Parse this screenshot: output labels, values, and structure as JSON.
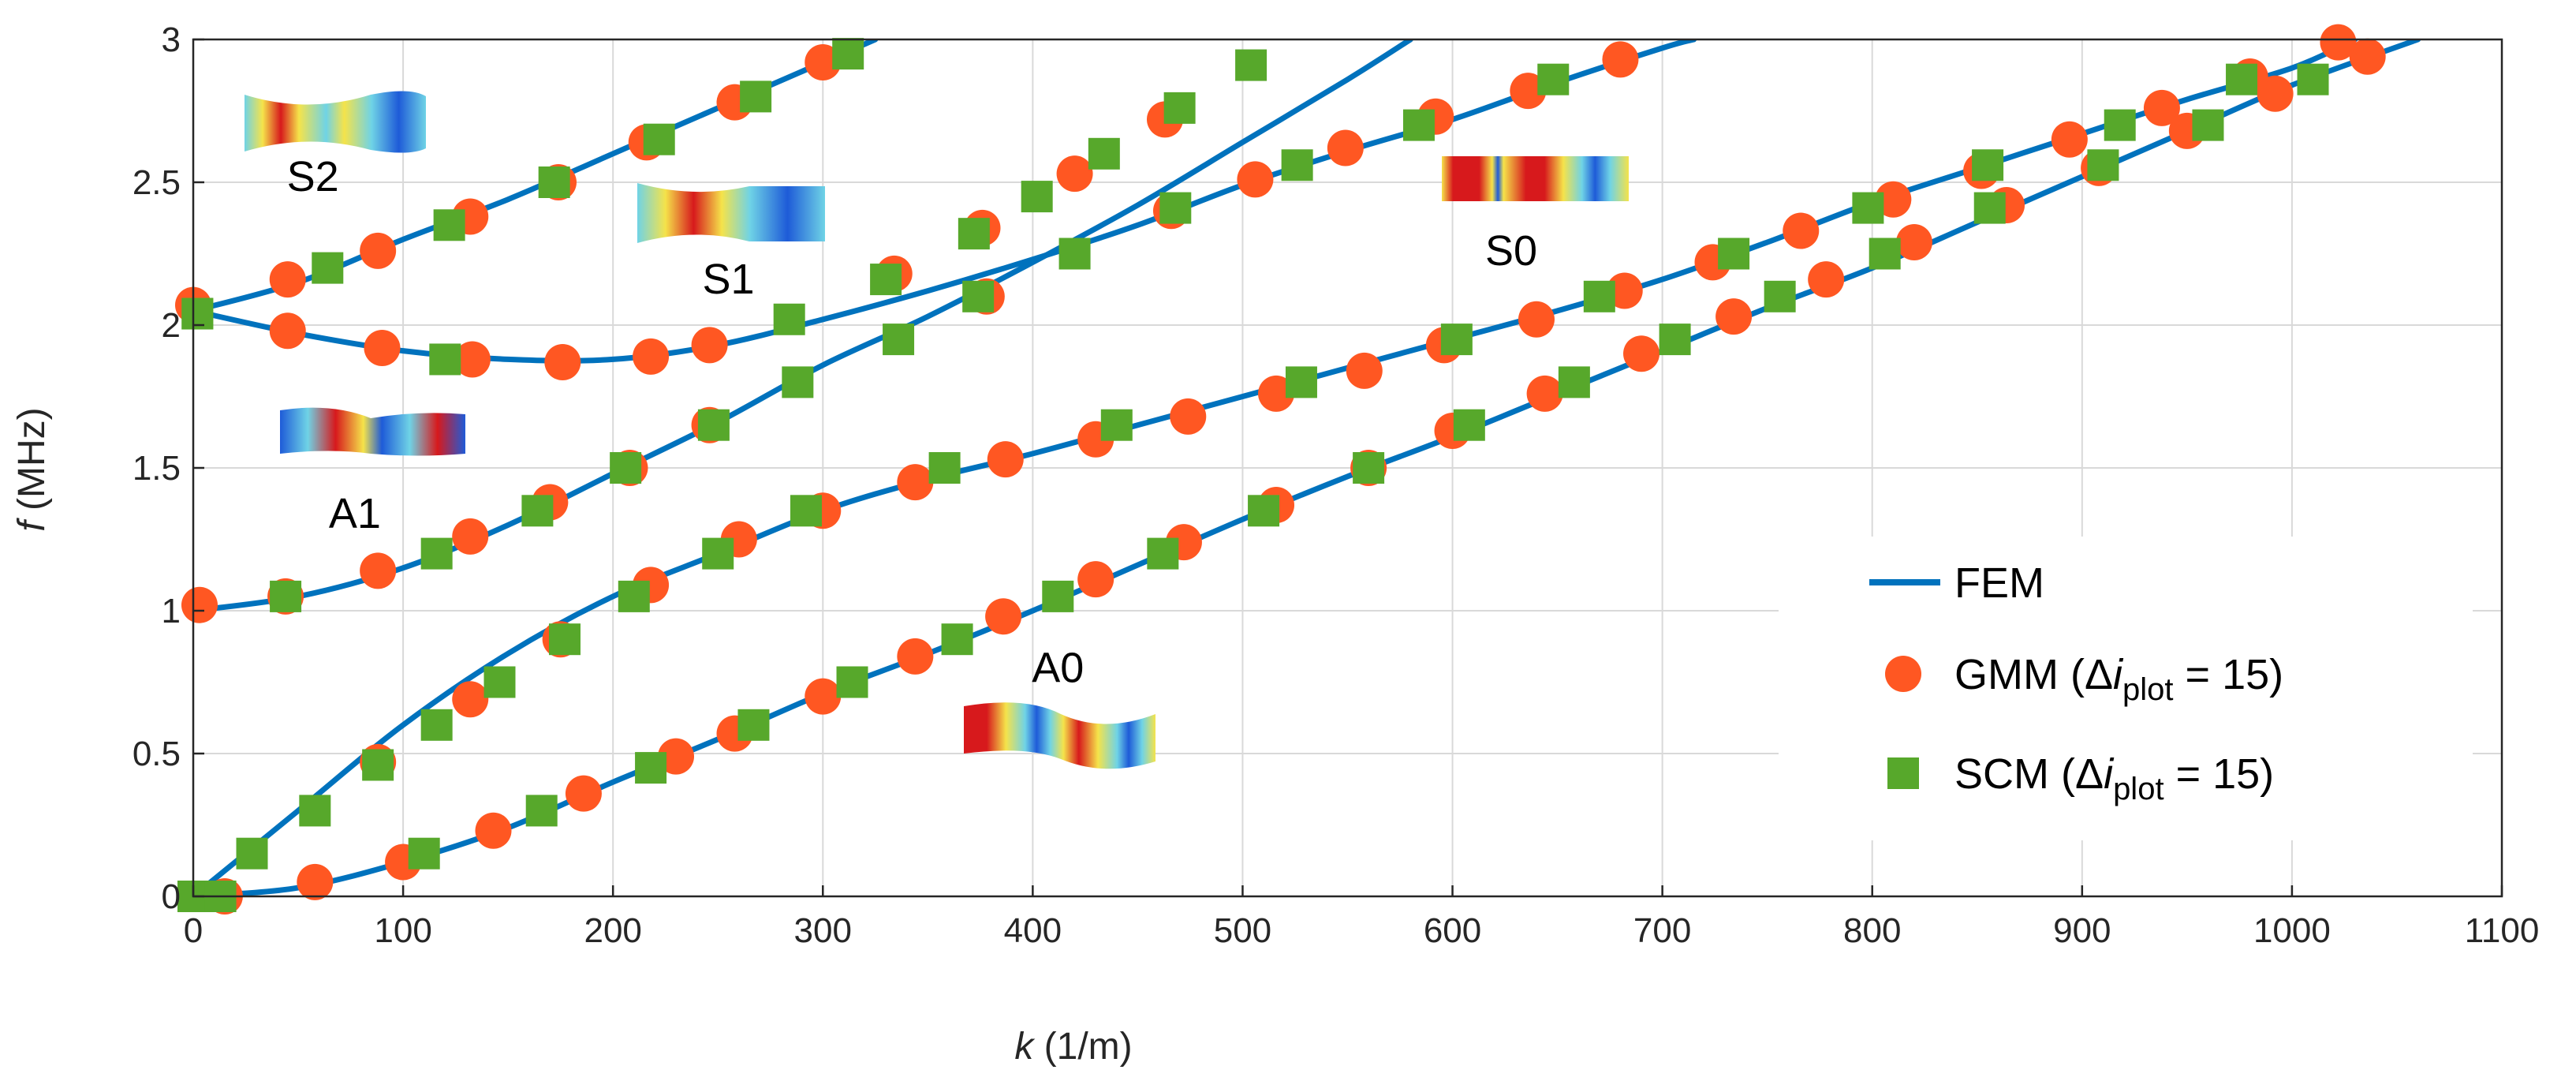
{
  "colors": {
    "fem": "#0072BD",
    "gmm": "#FF5722",
    "scm": "#57A82B",
    "grid": "#d9d9d9",
    "axis": "#262626",
    "mode_red": "#d7191c",
    "mode_blue": "#1e5bd8",
    "mode_cyan": "#6fd3e6",
    "mode_yellow": "#f5e34a"
  },
  "chart_data": {
    "type": "line",
    "title": "",
    "xlabel": {
      "var": "k",
      "unit": " (1/m)"
    },
    "ylabel": {
      "var": "f",
      "unit": " (MHz)"
    },
    "xlim": [
      0,
      1100
    ],
    "ylim": [
      0,
      3
    ],
    "grid": true,
    "xticks": [
      0,
      100,
      200,
      300,
      400,
      500,
      600,
      700,
      800,
      900,
      1000,
      1100
    ],
    "yticks": [
      0,
      0.5,
      1,
      1.5,
      2,
      2.5,
      3
    ],
    "legend": {
      "placement": "bottom-right",
      "entries": [
        {
          "name": "FEM",
          "marker": "line"
        },
        {
          "name": "GMM",
          "marker": "circle",
          "prefix": "GMM (Δ",
          "var": "i",
          "sub": "plot",
          "suffix": " = 15)"
        },
        {
          "name": "SCM",
          "marker": "square",
          "prefix": "SCM (Δ",
          "var": "i",
          "sub": "plot",
          "suffix": " = 15)"
        }
      ]
    },
    "series": [
      {
        "name": "A0",
        "fem": [
          [
            0,
            0
          ],
          [
            50,
            0.03
          ],
          [
            100,
            0.12
          ],
          [
            150,
            0.24
          ],
          [
            200,
            0.4
          ],
          [
            250,
            0.55
          ],
          [
            300,
            0.71
          ],
          [
            350,
            0.85
          ],
          [
            400,
            1.0
          ],
          [
            450,
            1.16
          ],
          [
            500,
            1.32
          ],
          [
            550,
            1.47
          ],
          [
            600,
            1.61
          ],
          [
            650,
            1.76
          ],
          [
            700,
            1.91
          ],
          [
            750,
            2.06
          ],
          [
            800,
            2.2
          ],
          [
            850,
            2.36
          ],
          [
            900,
            2.52
          ],
          [
            950,
            2.68
          ],
          [
            1000,
            2.84
          ],
          [
            1060,
            3.0
          ]
        ],
        "gmm": [
          [
            15,
            0
          ],
          [
            58,
            0.05
          ],
          [
            100,
            0.12
          ],
          [
            143,
            0.23
          ],
          [
            186,
            0.36
          ],
          [
            230,
            0.49
          ],
          [
            258,
            0.57
          ],
          [
            300,
            0.7
          ],
          [
            344,
            0.84
          ],
          [
            386,
            0.98
          ],
          [
            430,
            1.11
          ],
          [
            472,
            1.24
          ],
          [
            516,
            1.37
          ],
          [
            560,
            1.5
          ],
          [
            600,
            1.63
          ],
          [
            644,
            1.76
          ],
          [
            690,
            1.9
          ],
          [
            734,
            2.03
          ],
          [
            778,
            2.16
          ],
          [
            820,
            2.29
          ],
          [
            864,
            2.42
          ],
          [
            908,
            2.55
          ],
          [
            950,
            2.68
          ],
          [
            992,
            2.81
          ],
          [
            1036,
            2.94
          ]
        ],
        "scm": [
          [
            0,
            0
          ],
          [
            13,
            0
          ],
          [
            110,
            0.15
          ],
          [
            166,
            0.3
          ],
          [
            218,
            0.45
          ],
          [
            267,
            0.6
          ],
          [
            314,
            0.75
          ],
          [
            364,
            0.9
          ],
          [
            412,
            1.05
          ],
          [
            462,
            1.2
          ],
          [
            510,
            1.35
          ],
          [
            560,
            1.5
          ],
          [
            608,
            1.65
          ],
          [
            658,
            1.8
          ],
          [
            706,
            1.95
          ],
          [
            756,
            2.1
          ],
          [
            806,
            2.25
          ],
          [
            856,
            2.41
          ],
          [
            910,
            2.56
          ],
          [
            960,
            2.7
          ],
          [
            1010,
            2.86
          ]
        ]
      },
      {
        "name": "S0",
        "fem": [
          [
            0,
            0
          ],
          [
            50,
            0.3
          ],
          [
            100,
            0.6
          ],
          [
            150,
            0.85
          ],
          [
            200,
            1.05
          ],
          [
            250,
            1.2
          ],
          [
            300,
            1.35
          ],
          [
            350,
            1.46
          ],
          [
            400,
            1.55
          ],
          [
            450,
            1.65
          ],
          [
            500,
            1.75
          ],
          [
            550,
            1.85
          ],
          [
            600,
            1.95
          ],
          [
            650,
            2.05
          ],
          [
            700,
            2.16
          ],
          [
            750,
            2.29
          ],
          [
            800,
            2.43
          ],
          [
            850,
            2.55
          ],
          [
            900,
            2.67
          ],
          [
            950,
            2.79
          ],
          [
            1000,
            2.9
          ],
          [
            1030,
            3.0
          ]
        ],
        "gmm": [
          [
            88,
            0.47
          ],
          [
            132,
            0.69
          ],
          [
            175,
            0.9
          ],
          [
            218,
            1.09
          ],
          [
            260,
            1.25
          ],
          [
            300,
            1.35
          ],
          [
            344,
            1.45
          ],
          [
            387,
            1.53
          ],
          [
            430,
            1.6
          ],
          [
            474,
            1.68
          ],
          [
            516,
            1.76
          ],
          [
            558,
            1.84
          ],
          [
            596,
            1.93
          ],
          [
            640,
            2.02
          ],
          [
            682,
            2.12
          ],
          [
            724,
            2.22
          ],
          [
            766,
            2.33
          ],
          [
            810,
            2.44
          ],
          [
            852,
            2.54
          ],
          [
            894,
            2.65
          ],
          [
            938,
            2.76
          ],
          [
            980,
            2.87
          ],
          [
            1022,
            2.99
          ]
        ],
        "scm": [
          [
            28,
            0.15
          ],
          [
            58,
            0.3
          ],
          [
            88,
            0.46
          ],
          [
            116,
            0.6
          ],
          [
            146,
            0.75
          ],
          [
            177,
            0.9
          ],
          [
            210,
            1.05
          ],
          [
            250,
            1.2
          ],
          [
            292,
            1.35
          ],
          [
            358,
            1.5
          ],
          [
            440,
            1.65
          ],
          [
            528,
            1.8
          ],
          [
            602,
            1.95
          ],
          [
            670,
            2.1
          ],
          [
            734,
            2.25
          ],
          [
            798,
            2.41
          ],
          [
            855,
            2.56
          ],
          [
            918,
            2.7
          ],
          [
            976,
            2.86
          ]
        ]
      },
      {
        "name": "A1",
        "fem": [
          [
            0,
            2.05
          ],
          [
            50,
            1.97
          ],
          [
            100,
            1.91
          ],
          [
            150,
            1.88
          ],
          [
            200,
            1.88
          ],
          [
            250,
            1.93
          ],
          [
            300,
            2.02
          ],
          [
            350,
            2.12
          ],
          [
            400,
            2.23
          ],
          [
            450,
            2.35
          ],
          [
            500,
            2.49
          ],
          [
            550,
            2.61
          ],
          [
            600,
            2.72
          ],
          [
            650,
            2.85
          ],
          [
            700,
            2.97
          ],
          [
            715,
            3.0
          ]
        ],
        "gmm": [
          [
            45,
            1.98
          ],
          [
            90,
            1.92
          ],
          [
            133,
            1.88
          ],
          [
            176,
            1.87
          ],
          [
            218,
            1.89
          ],
          [
            246,
            1.93
          ],
          [
            334,
            2.18
          ],
          [
            376,
            2.34
          ],
          [
            420,
            2.53
          ],
          [
            463,
            2.72
          ],
          [
            506,
            2.51
          ],
          [
            549,
            2.62
          ],
          [
            592,
            2.73
          ],
          [
            636,
            2.82
          ],
          [
            680,
            2.93
          ]
        ],
        "scm": [
          [
            2,
            2.04
          ],
          [
            120,
            1.88
          ],
          [
            284,
            2.02
          ],
          [
            330,
            2.16
          ],
          [
            372,
            2.32
          ],
          [
            402,
            2.45
          ],
          [
            434,
            2.6
          ],
          [
            470,
            2.76
          ],
          [
            504,
            2.91
          ],
          [
            526,
            2.56
          ],
          [
            584,
            2.7
          ],
          [
            648,
            2.86
          ]
        ]
      },
      {
        "name": "S1",
        "fem": [
          [
            0,
            1.0
          ],
          [
            50,
            1.05
          ],
          [
            100,
            1.15
          ],
          [
            150,
            1.3
          ],
          [
            200,
            1.48
          ],
          [
            250,
            1.66
          ],
          [
            300,
            1.86
          ],
          [
            350,
            2.03
          ],
          [
            400,
            2.22
          ],
          [
            450,
            2.42
          ],
          [
            500,
            2.64
          ],
          [
            550,
            2.86
          ],
          [
            580,
            3.0
          ]
        ],
        "gmm": [
          [
            3,
            1.02
          ],
          [
            44,
            1.05
          ],
          [
            88,
            1.14
          ],
          [
            132,
            1.26
          ],
          [
            170,
            1.38
          ],
          [
            208,
            1.5
          ],
          [
            246,
            1.65
          ],
          [
            378,
            2.1
          ],
          [
            466,
            2.4
          ]
        ],
        "scm": [
          [
            44,
            1.05
          ],
          [
            116,
            1.2
          ],
          [
            164,
            1.35
          ],
          [
            206,
            1.5
          ],
          [
            248,
            1.65
          ],
          [
            288,
            1.8
          ],
          [
            336,
            1.95
          ],
          [
            374,
            2.1
          ],
          [
            420,
            2.25
          ],
          [
            468,
            2.41
          ]
        ]
      },
      {
        "name": "S2",
        "fem": [
          [
            0,
            2.05
          ],
          [
            50,
            2.15
          ],
          [
            100,
            2.3
          ],
          [
            150,
            2.44
          ],
          [
            200,
            2.6
          ],
          [
            250,
            2.76
          ],
          [
            300,
            2.92
          ],
          [
            325,
            3.0
          ]
        ],
        "gmm": [
          [
            0,
            2.07
          ],
          [
            45,
            2.16
          ],
          [
            88,
            2.26
          ],
          [
            132,
            2.38
          ],
          [
            174,
            2.5
          ],
          [
            216,
            2.64
          ],
          [
            258,
            2.78
          ],
          [
            300,
            2.92
          ]
        ],
        "scm": [
          [
            2,
            2.04
          ],
          [
            64,
            2.2
          ],
          [
            122,
            2.35
          ],
          [
            172,
            2.5
          ],
          [
            222,
            2.65
          ],
          [
            268,
            2.8
          ],
          [
            312,
            2.95
          ]
        ]
      }
    ],
    "annotations": [
      {
        "text": "S2",
        "x": 57,
        "y": 2.47
      },
      {
        "text": "S1",
        "x": 255,
        "y": 2.11
      },
      {
        "text": "S0",
        "x": 628,
        "y": 2.21
      },
      {
        "text": "A1",
        "x": 77,
        "y": 1.29
      },
      {
        "text": "A0",
        "x": 412,
        "y": 0.75
      }
    ]
  }
}
